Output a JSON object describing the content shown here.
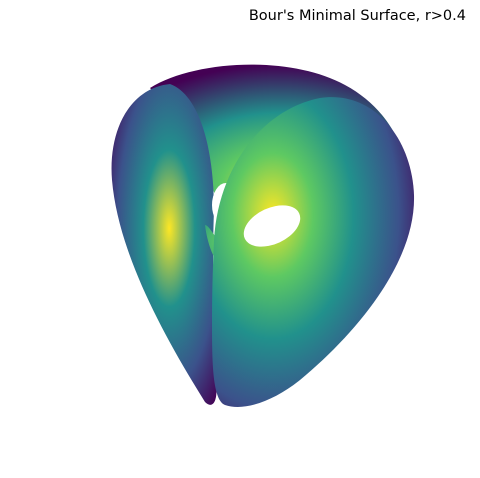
{
  "chart_data": {
    "type": "surface-3d",
    "title": "Bour's Minimal Surface, r>0.4",
    "surface": "Bour's minimal surface",
    "parameter_constraint": "r>0.4",
    "colormap": "viridis",
    "axes_visible": false,
    "grid": false,
    "colors": {
      "viridis": [
        "#440154",
        "#3b528b",
        "#21918c",
        "#5ec962",
        "#fde725"
      ]
    }
  }
}
